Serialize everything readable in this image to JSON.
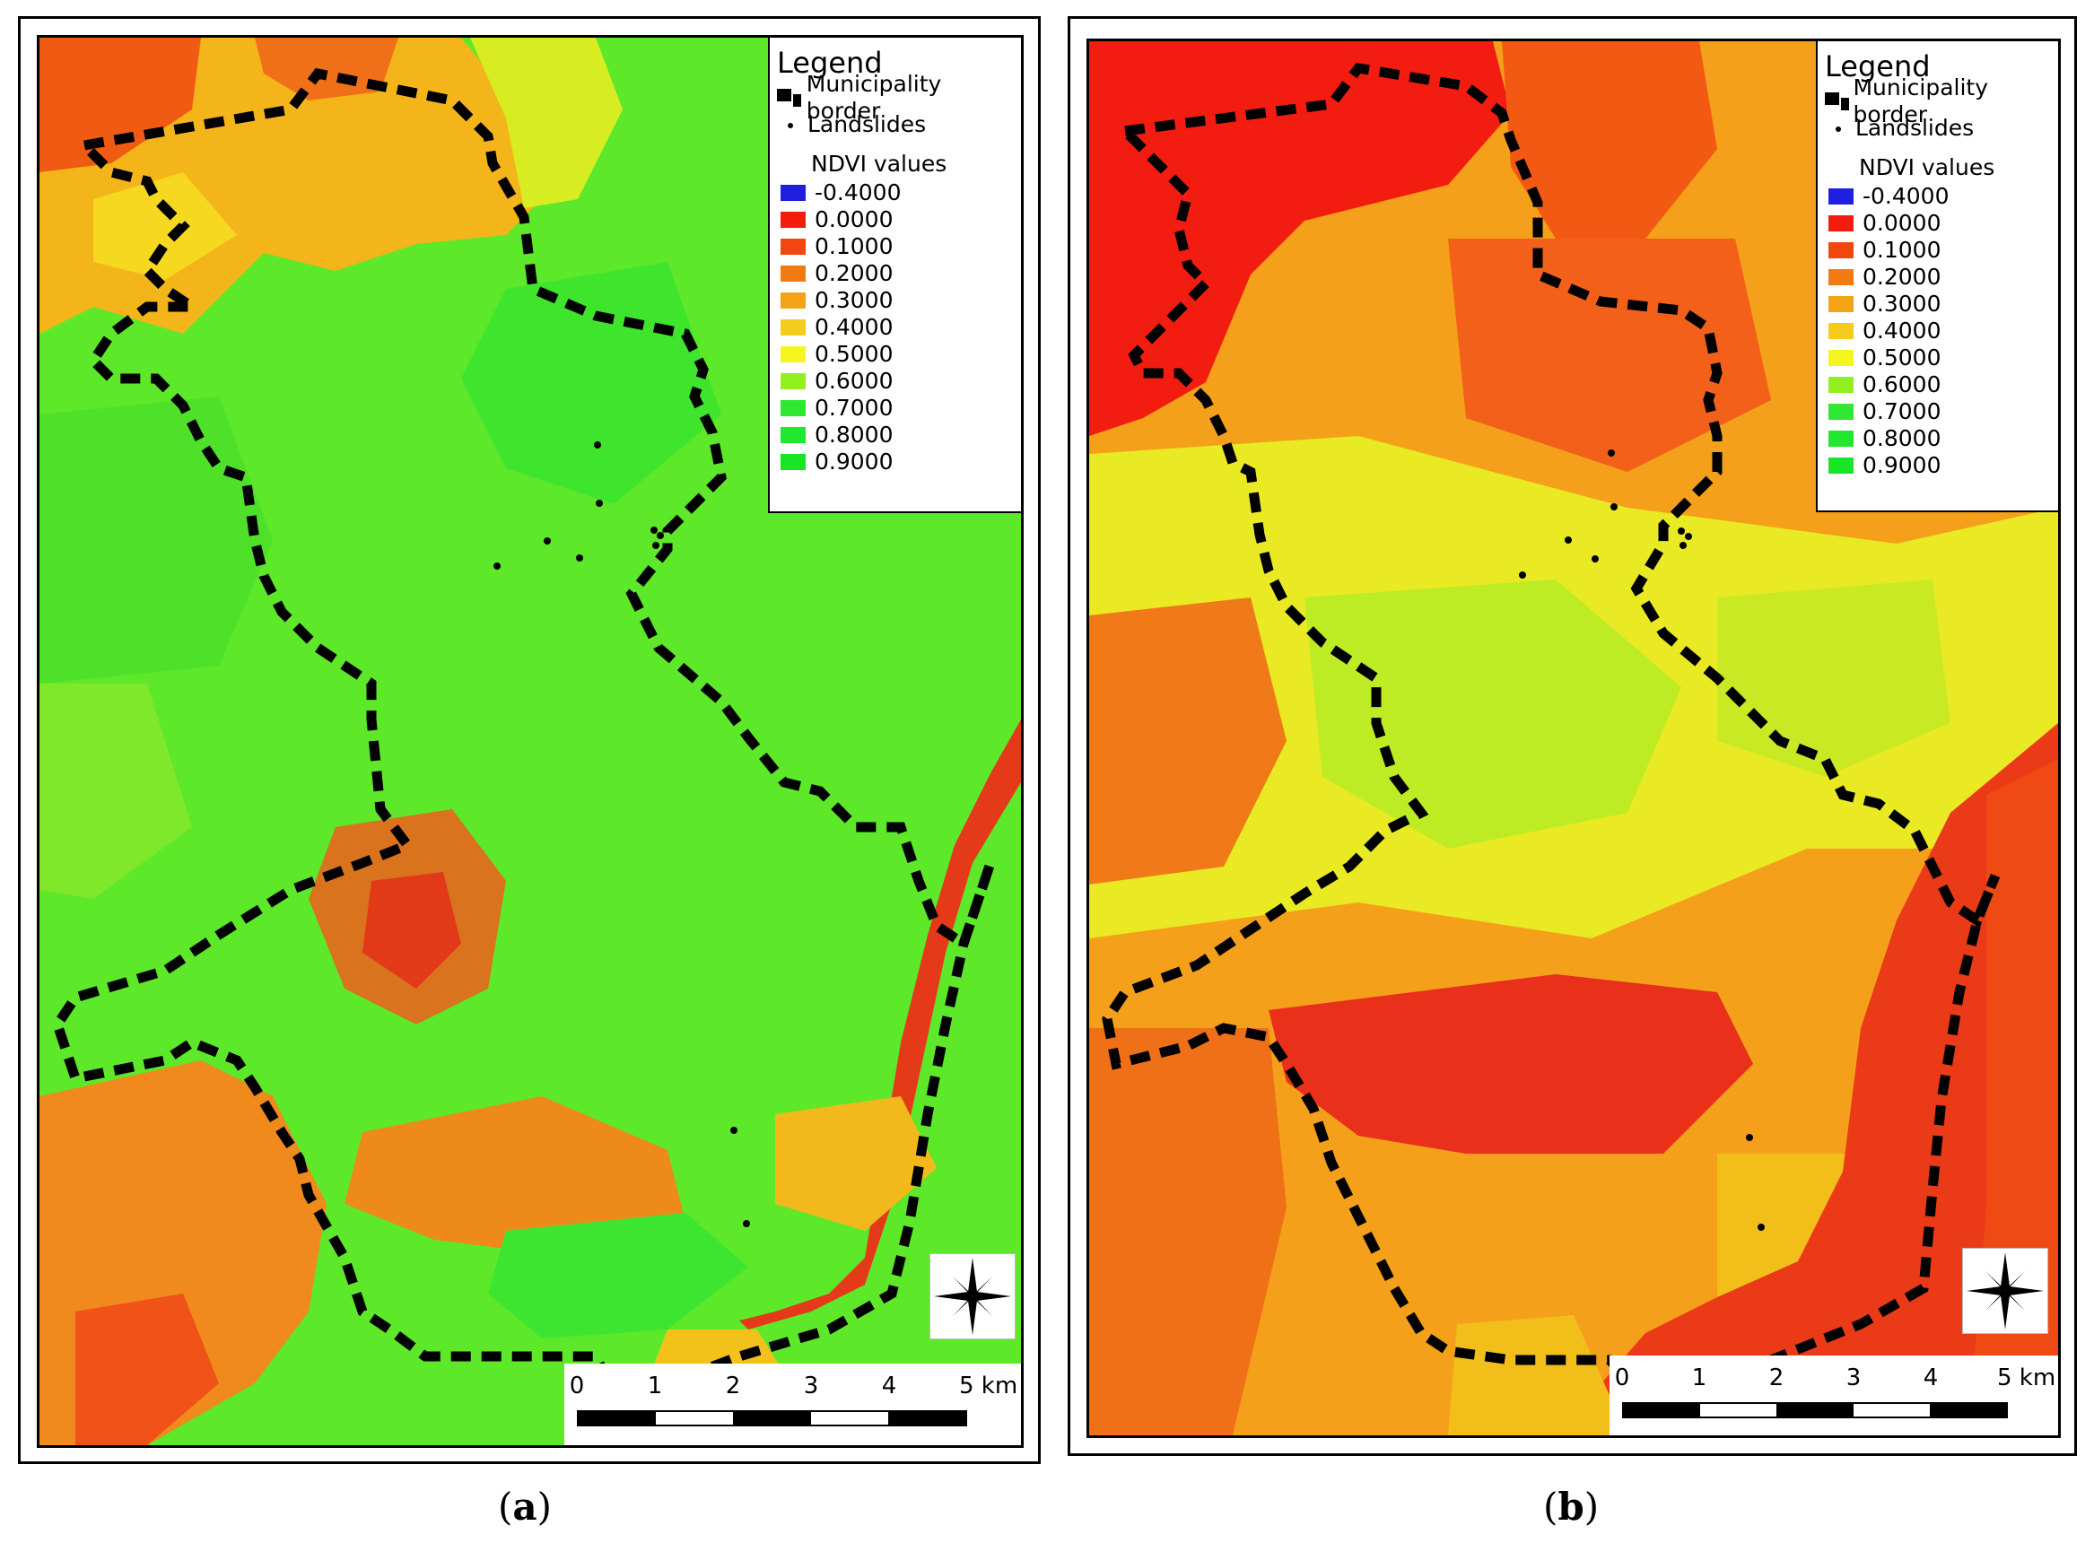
{
  "legend": {
    "title": "Legend",
    "municipality_border": "Municipality border",
    "landslides": "Landslides",
    "ndvi_title": "NDVI values",
    "classes": [
      {
        "label": "-0.4000",
        "color": "#1f1fe0"
      },
      {
        "label": "0.0000",
        "color": "#f21d0f"
      },
      {
        "label": "0.1000",
        "color": "#f1470f"
      },
      {
        "label": "0.2000",
        "color": "#f17a12"
      },
      {
        "label": "0.3000",
        "color": "#f2a316"
      },
      {
        "label": "0.4000",
        "color": "#f5cc1b"
      },
      {
        "label": "0.5000",
        "color": "#f7f51f"
      },
      {
        "label": "0.6000",
        "color": "#92ef1f"
      },
      {
        "label": "0.7000",
        "color": "#2fe832"
      },
      {
        "label": "0.8000",
        "color": "#1fe82f"
      },
      {
        "label": "0.9000",
        "color": "#18e528"
      }
    ]
  },
  "scale": {
    "ticks": [
      "0",
      "1",
      "2",
      "3",
      "4",
      "5 km"
    ]
  },
  "panels": [
    {
      "caption_open": "(",
      "caption_letter": "a",
      "caption_close": ")"
    },
    {
      "caption_open": "(",
      "caption_letter": "b",
      "caption_close": ")"
    }
  ]
}
